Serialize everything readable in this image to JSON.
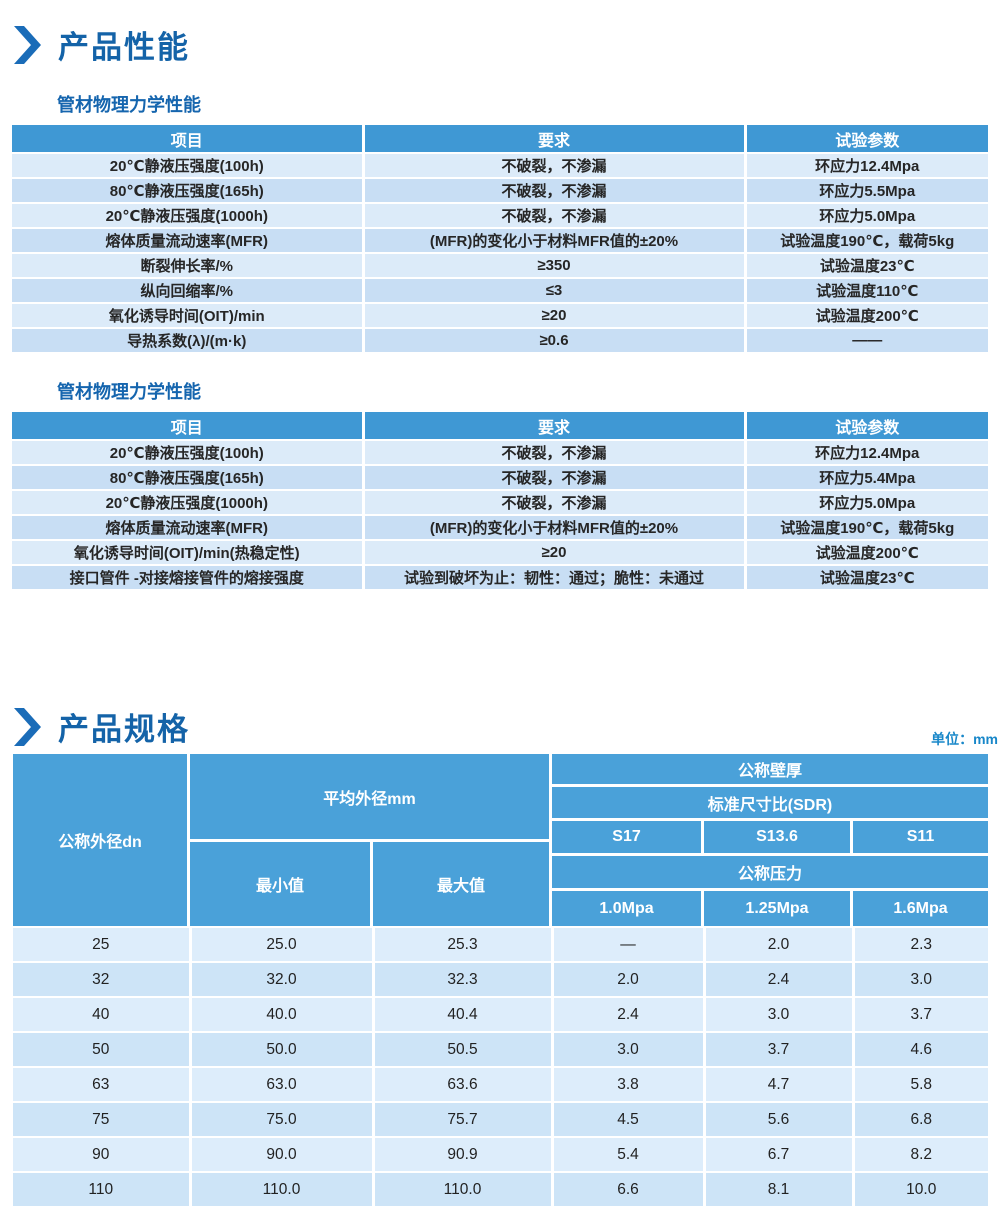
{
  "colors": {
    "title_blue": "#1463a8",
    "subtitle_blue": "#1565ae",
    "accent_chevron_blue": "#1a6cb8",
    "unit_text_blue": "#1887c9",
    "perf_header_bg": "#3f98d4",
    "perf_row_light": "#dcebf9",
    "perf_row_dark": "#c8def4",
    "spec_header_bg": "#4aa1d9",
    "spec_row_light": "#ddedfb",
    "spec_row_dark": "#cde4f7"
  },
  "section_performance": {
    "title": "产品性能",
    "table1": {
      "subtitle": "管材物理力学性能",
      "headers": [
        "项目",
        "要求",
        "试验参数"
      ],
      "rows": [
        [
          "20℃静液压强度(100h)",
          "不破裂，不渗漏",
          "环应力12.4Mpa"
        ],
        [
          "80℃静液压强度(165h)",
          "不破裂，不渗漏",
          "环应力5.5Mpa"
        ],
        [
          "20℃静液压强度(1000h)",
          "不破裂，不渗漏",
          "环应力5.0Mpa"
        ],
        [
          "熔体质量流动速率(MFR)",
          "(MFR)的变化小于材料MFR值的±20%",
          "试验温度190℃，载荷5kg"
        ],
        [
          "断裂伸长率/%",
          "≥350",
          "试验温度23℃"
        ],
        [
          "纵向回缩率/%",
          "≤3",
          "试验温度110℃"
        ],
        [
          "氧化诱导时间(OIT)/min",
          "≥20",
          "试验温度200℃"
        ],
        [
          "导热系数(λ)/(m·k)",
          "≥0.6",
          "——"
        ]
      ]
    },
    "table2": {
      "subtitle": "管材物理力学性能",
      "headers": [
        "项目",
        "要求",
        "试验参数"
      ],
      "rows": [
        [
          "20℃静液压强度(100h)",
          "不破裂，不渗漏",
          "环应力12.4Mpa"
        ],
        [
          "80℃静液压强度(165h)",
          "不破裂，不渗漏",
          "环应力5.4Mpa"
        ],
        [
          "20℃静液压强度(1000h)",
          "不破裂，不渗漏",
          "环应力5.0Mpa"
        ],
        [
          "熔体质量流动速率(MFR)",
          "(MFR)的变化小于材料MFR值的±20%",
          "试验温度190℃，载荷5kg"
        ],
        [
          "氧化诱导时间(OIT)/min(热稳定性)",
          "≥20",
          "试验温度200℃"
        ],
        [
          "接口管件 -对接熔接管件的熔接强度",
          "试验到破坏为止：韧性：通过；脆性：未通过",
          "试验温度23℃"
        ]
      ]
    }
  },
  "section_specs": {
    "title": "产品规格",
    "unit_note": "单位：mm",
    "spec_table": {
      "col_dn": "公称外径dn",
      "avg_od": "平均外径mm",
      "min_label": "最小值",
      "max_label": "最大值",
      "wall_label": "公称壁厚",
      "sdr_label": "标准尺寸比(SDR)",
      "sdr_values": [
        "S17",
        "S13.6",
        "S11"
      ],
      "pressure_label": "公称压力",
      "pressure_values": [
        "1.0Mpa",
        "1.25Mpa",
        "1.6Mpa"
      ],
      "rows": [
        [
          "25",
          "25.0",
          "25.3",
          "—",
          "2.0",
          "2.3"
        ],
        [
          "32",
          "32.0",
          "32.3",
          "2.0",
          "2.4",
          "3.0"
        ],
        [
          "40",
          "40.0",
          "40.4",
          "2.4",
          "3.0",
          "3.7"
        ],
        [
          "50",
          "50.0",
          "50.5",
          "3.0",
          "3.7",
          "4.6"
        ],
        [
          "63",
          "63.0",
          "63.6",
          "3.8",
          "4.7",
          "5.8"
        ],
        [
          "75",
          "75.0",
          "75.7",
          "4.5",
          "5.6",
          "6.8"
        ],
        [
          "90",
          "90.0",
          "90.9",
          "5.4",
          "6.7",
          "8.2"
        ],
        [
          "110",
          "110.0",
          "110.0",
          "6.6",
          "8.1",
          "10.0"
        ]
      ]
    }
  }
}
